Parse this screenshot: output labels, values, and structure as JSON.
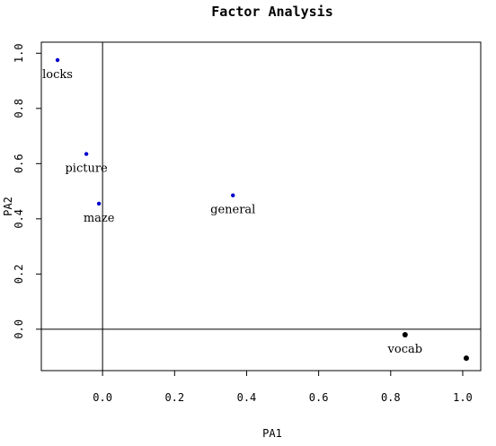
{
  "chart_data": {
    "type": "scatter",
    "title": "Factor Analysis",
    "xlabel": "PA1",
    "ylabel": "PA2",
    "xlim": [
      -0.17,
      1.05
    ],
    "ylim": [
      -0.15,
      1.04
    ],
    "xticks": [
      0.0,
      0.2,
      0.4,
      0.6,
      0.8,
      1.0
    ],
    "xtick_labels": [
      "0.0",
      "0.2",
      "0.4",
      "0.6",
      "0.8",
      "1.0"
    ],
    "yticks": [
      0.0,
      0.2,
      0.4,
      0.6,
      0.8,
      1.0
    ],
    "ytick_labels": [
      "0.0",
      "0.2",
      "0.4",
      "0.6",
      "0.8",
      "1.0"
    ],
    "reference_lines": {
      "x": 0,
      "y": 0
    },
    "grid": false,
    "points": [
      {
        "label": "locks",
        "x": -0.125,
        "y": 0.975,
        "color": "#0000cd"
      },
      {
        "label": "picture",
        "x": -0.045,
        "y": 0.635,
        "color": "#0000cd"
      },
      {
        "label": "maze",
        "x": -0.01,
        "y": 0.455,
        "color": "#0000cd"
      },
      {
        "label": "general",
        "x": 0.362,
        "y": 0.485,
        "color": "#0000cd"
      },
      {
        "label": "vocab",
        "x": 0.84,
        "y": -0.02,
        "color": "#000000"
      },
      {
        "label": "",
        "x": 1.01,
        "y": -0.105,
        "color": "#000000"
      }
    ]
  }
}
